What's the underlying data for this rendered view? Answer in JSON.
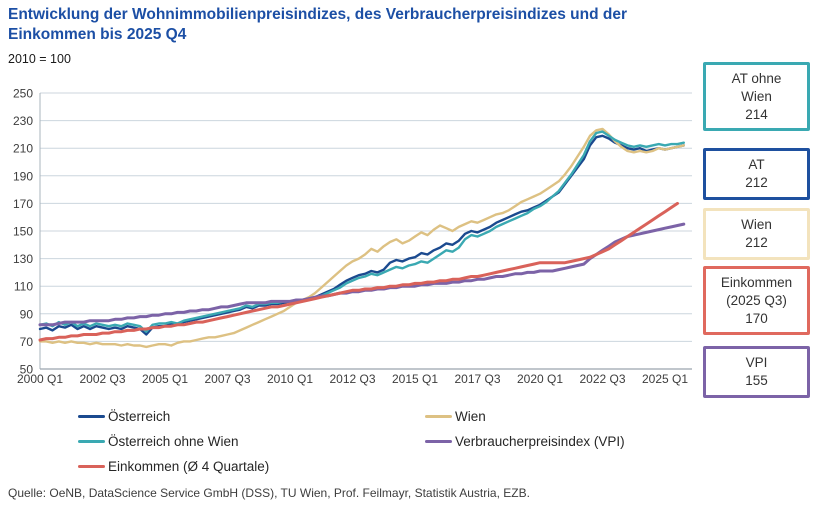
{
  "header": {
    "title_line1": "Entwicklung der Wohnimmobilienpreisindizes, des Verbraucherpreisindizes und der",
    "title_line2": "Einkommen bis 2025 Q4",
    "subtitle": "2010 = 100"
  },
  "source": "Quelle: OeNB, DataScience Service GmbH (DSS), TU Wien, Prof. Feilmayr, Statistik Austria, EZB.",
  "end_labels": [
    {
      "lines": [
        "AT ohne",
        "Wien",
        "214"
      ],
      "color": "#3aa9b2"
    },
    {
      "lines": [
        "AT",
        "212"
      ],
      "color": "#1e509f"
    },
    {
      "lines": [
        "Wien",
        "212"
      ],
      "color": "#f3e3bd"
    },
    {
      "lines": [
        "Einkommen",
        "(2025 Q3)",
        "170"
      ],
      "color": "#e0695e"
    },
    {
      "lines": [
        "VPI",
        "155"
      ],
      "color": "#7c63a7"
    }
  ],
  "chart_data": {
    "type": "line",
    "title": "Entwicklung der Wohnimmobilienpreisindizes, des Verbraucherpreisindizes und der Einkommen bis 2025 Q4",
    "subtitle": "2010 = 100",
    "x_unit": "quarter",
    "x_start": "2000 Q1",
    "x_end": "2025 Q4",
    "x_tick_labels": [
      "2000 Q1",
      "2002 Q3",
      "2005 Q1",
      "2007 Q3",
      "2010 Q1",
      "2012 Q3",
      "2015 Q1",
      "2017 Q3",
      "2020 Q1",
      "2022 Q3",
      "2025 Q1"
    ],
    "x_tick_step_quarters": 10,
    "ylim": [
      50,
      250
    ],
    "y_ticks": [
      50,
      70,
      90,
      110,
      130,
      150,
      170,
      190,
      210,
      230,
      250
    ],
    "grid": "horizontal",
    "legend_position": "bottom",
    "legend_columns": [
      [
        "Österreich",
        "Österreich ohne Wien",
        "Einkommen (Ø 4 Quartale)"
      ],
      [
        "Wien",
        "Verbraucherpreisindex (VPI)"
      ]
    ],
    "series": [
      {
        "name": "Österreich",
        "color": "#1b4a8f",
        "width": 2.4,
        "values": [
          79,
          80,
          78,
          81,
          80,
          82,
          79,
          81,
          79,
          81,
          80,
          79,
          80,
          79,
          81,
          80,
          79,
          75,
          80,
          81,
          81,
          83,
          82,
          84,
          85,
          86,
          87,
          88,
          89,
          90,
          91,
          92,
          93,
          95,
          94,
          96,
          96,
          97,
          97,
          98,
          99,
          100,
          100,
          101,
          102,
          104,
          106,
          108,
          111,
          114,
          116,
          118,
          119,
          121,
          120,
          122,
          127,
          129,
          128,
          130,
          131,
          134,
          133,
          136,
          138,
          141,
          140,
          143,
          148,
          150,
          149,
          151,
          153,
          156,
          158,
          160,
          162,
          164,
          165,
          167,
          169,
          172,
          175,
          178,
          184,
          190,
          196,
          202,
          212,
          218,
          219,
          217,
          214,
          212,
          210,
          209,
          210,
          208,
          209,
          210,
          209,
          210,
          211,
          212
        ]
      },
      {
        "name": "Wien",
        "color": "#ddc183",
        "width": 2.4,
        "values": [
          70,
          70,
          69,
          70,
          69,
          70,
          69,
          69,
          68,
          69,
          68,
          68,
          68,
          67,
          68,
          67,
          67,
          66,
          67,
          68,
          68,
          67,
          69,
          70,
          70,
          71,
          72,
          73,
          73,
          74,
          75,
          76,
          78,
          80,
          82,
          84,
          86,
          88,
          90,
          92,
          95,
          98,
          100,
          102,
          105,
          109,
          113,
          117,
          121,
          125,
          128,
          130,
          133,
          137,
          135,
          139,
          142,
          144,
          141,
          143,
          146,
          149,
          147,
          151,
          154,
          152,
          150,
          153,
          155,
          157,
          156,
          158,
          160,
          162,
          163,
          165,
          168,
          171,
          173,
          175,
          177,
          180,
          183,
          186,
          191,
          197,
          204,
          211,
          219,
          223,
          224,
          220,
          215,
          211,
          208,
          207,
          208,
          207,
          208,
          210,
          209,
          210,
          211,
          212
        ]
      },
      {
        "name": "Österreich ohne Wien",
        "color": "#3aa9b2",
        "width": 2.4,
        "values": [
          82,
          83,
          81,
          84,
          82,
          84,
          81,
          83,
          81,
          83,
          82,
          81,
          82,
          81,
          83,
          82,
          81,
          77,
          82,
          83,
          83,
          84,
          83,
          85,
          86,
          87,
          88,
          89,
          90,
          91,
          92,
          93,
          94,
          96,
          95,
          97,
          97,
          98,
          98,
          99,
          99,
          100,
          100,
          101,
          102,
          103,
          105,
          107,
          109,
          112,
          114,
          116,
          117,
          119,
          118,
          120,
          122,
          124,
          123,
          125,
          126,
          128,
          127,
          130,
          133,
          136,
          135,
          138,
          144,
          147,
          146,
          148,
          150,
          153,
          155,
          157,
          159,
          161,
          163,
          166,
          168,
          171,
          175,
          179,
          185,
          191,
          198,
          205,
          215,
          221,
          222,
          219,
          216,
          214,
          212,
          211,
          212,
          211,
          212,
          213,
          212,
          213,
          213,
          214
        ]
      },
      {
        "name": "Verbraucherpreisindex (VPI)",
        "color": "#7c63a7",
        "width": 3,
        "values": [
          82,
          82,
          82,
          83,
          84,
          84,
          84,
          84,
          85,
          85,
          85,
          85,
          86,
          86,
          87,
          87,
          88,
          88,
          89,
          89,
          90,
          90,
          91,
          91,
          92,
          92,
          93,
          93,
          94,
          95,
          95,
          96,
          97,
          98,
          98,
          98,
          98,
          99,
          99,
          99,
          99,
          100,
          100,
          101,
          102,
          103,
          103,
          104,
          105,
          105,
          106,
          106,
          107,
          107,
          108,
          108,
          109,
          109,
          110,
          110,
          110,
          111,
          111,
          112,
          112,
          112,
          113,
          113,
          114,
          114,
          115,
          115,
          116,
          117,
          117,
          118,
          119,
          119,
          120,
          120,
          121,
          121,
          121,
          122,
          123,
          124,
          125,
          126,
          130,
          133,
          136,
          139,
          142,
          144,
          146,
          147,
          148,
          149,
          150,
          151,
          152,
          153,
          154,
          155
        ]
      },
      {
        "name": "Einkommen (Ø 4 Quartale)",
        "color": "#d9625a",
        "width": 3,
        "values": [
          71,
          72,
          72,
          73,
          73,
          74,
          74,
          75,
          75,
          75,
          76,
          76,
          77,
          77,
          78,
          78,
          79,
          79,
          80,
          80,
          81,
          81,
          82,
          82,
          83,
          84,
          84,
          85,
          86,
          87,
          88,
          89,
          90,
          91,
          92,
          93,
          94,
          95,
          95,
          96,
          97,
          98,
          99,
          100,
          101,
          102,
          103,
          104,
          105,
          106,
          107,
          107,
          108,
          108,
          109,
          109,
          110,
          110,
          111,
          111,
          112,
          112,
          113,
          113,
          114,
          114,
          115,
          115,
          116,
          117,
          117,
          118,
          119,
          120,
          121,
          122,
          123,
          124,
          125,
          126,
          127,
          127,
          127,
          127,
          127,
          128,
          129,
          130,
          131,
          133,
          135,
          137,
          140,
          143,
          146,
          149,
          152,
          155,
          158,
          161,
          164,
          167,
          170
        ]
      }
    ]
  }
}
